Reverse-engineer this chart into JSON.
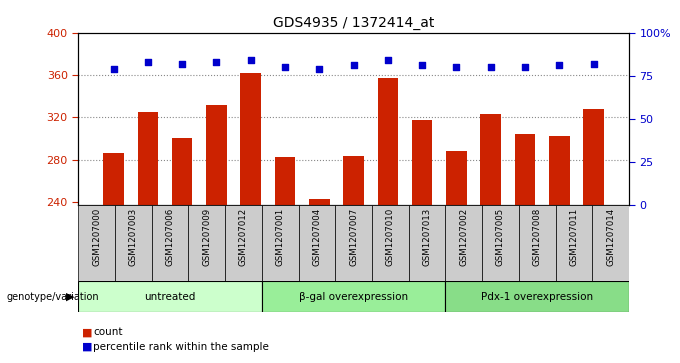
{
  "title": "GDS4935 / 1372414_at",
  "samples": [
    "GSM1207000",
    "GSM1207003",
    "GSM1207006",
    "GSM1207009",
    "GSM1207012",
    "GSM1207001",
    "GSM1207004",
    "GSM1207007",
    "GSM1207010",
    "GSM1207013",
    "GSM1207002",
    "GSM1207005",
    "GSM1207008",
    "GSM1207011",
    "GSM1207014"
  ],
  "counts": [
    286,
    325,
    300,
    332,
    362,
    282,
    243,
    283,
    357,
    317,
    288,
    323,
    304,
    302,
    328
  ],
  "percentiles": [
    79,
    83,
    82,
    83,
    84,
    80,
    79,
    81,
    84,
    81,
    80,
    80,
    80,
    81,
    82
  ],
  "bar_color": "#cc2200",
  "dot_color": "#0000cc",
  "ylim_left": [
    237,
    400
  ],
  "ylim_right": [
    0,
    100
  ],
  "yticks_left": [
    240,
    280,
    320,
    360,
    400
  ],
  "yticks_right": [
    0,
    25,
    50,
    75,
    100
  ],
  "dotted_line_values": [
    280,
    320,
    360
  ],
  "groups": [
    {
      "label": "untreated",
      "start": 0,
      "end": 5,
      "color": "#ccffcc"
    },
    {
      "label": "β-gal overexpression",
      "start": 5,
      "end": 10,
      "color": "#99ee99"
    },
    {
      "label": "Pdx-1 overexpression",
      "start": 10,
      "end": 15,
      "color": "#88dd88"
    }
  ],
  "genotype_label": "genotype/variation",
  "legend_count_label": "count",
  "legend_percentile_label": "percentile rank within the sample",
  "bg_color": "#ffffff",
  "plot_bg_color": "#ffffff",
  "tick_color_left": "#cc2200",
  "tick_color_right": "#0000cc",
  "grid_color": "#888888",
  "cell_color": "#cccccc"
}
